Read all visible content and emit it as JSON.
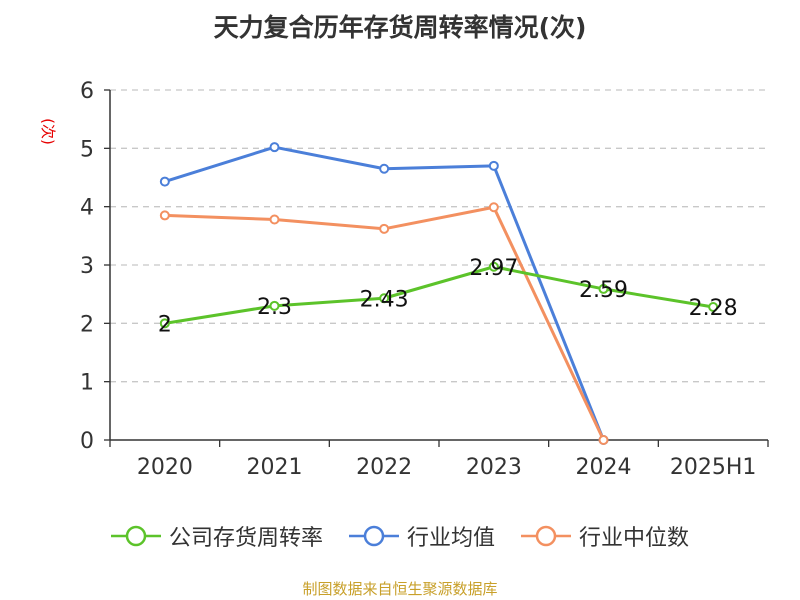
{
  "chart_data": {
    "type": "line",
    "title": "天力复合历年存货周转率情况(次)",
    "ylabel": "(次)",
    "categories": [
      "2020",
      "2021",
      "2022",
      "2023",
      "2024",
      "2025H1"
    ],
    "ylim": [
      0,
      6
    ],
    "yticks": [
      "0",
      "1",
      "2",
      "3",
      "4",
      "5",
      "6"
    ],
    "grid": true,
    "legend_position": "bottom",
    "series": [
      {
        "name": "公司存货周转率",
        "color": "#5cc32a",
        "values": [
          2.0,
          2.3,
          2.43,
          2.97,
          2.59,
          2.28
        ],
        "labels": [
          "2",
          "2.3",
          "2.43",
          "2.97",
          "2.59",
          "2.28"
        ]
      },
      {
        "name": "行业均值",
        "color": "#4b7fd9",
        "values": [
          4.43,
          5.02,
          4.65,
          4.7,
          0.0,
          null
        ],
        "labels": []
      },
      {
        "name": "行业中位数",
        "color": "#f39060",
        "values": [
          3.85,
          3.78,
          3.62,
          3.99,
          0.0,
          null
        ],
        "labels": []
      }
    ]
  },
  "source": "制图数据来自恒生聚源数据库"
}
